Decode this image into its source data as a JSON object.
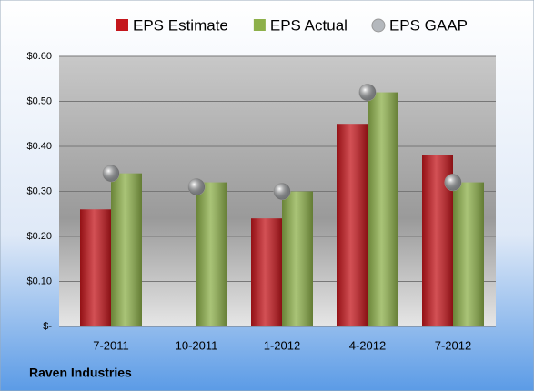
{
  "chart_data": {
    "type": "bar",
    "categories": [
      "7-2011",
      "10-2011",
      "1-2012",
      "4-2012",
      "7-2012"
    ],
    "series": [
      {
        "name": "EPS Estimate",
        "type": "bar",
        "color": "#c4161c",
        "values": [
          0.26,
          null,
          0.24,
          0.45,
          0.38
        ]
      },
      {
        "name": "EPS Actual",
        "type": "bar",
        "color": "#8db04a",
        "values": [
          0.34,
          0.32,
          0.3,
          0.52,
          0.32
        ]
      },
      {
        "name": "EPS GAAP",
        "type": "scatter",
        "color": "#b4b8bd",
        "values": [
          0.34,
          0.31,
          0.3,
          0.52,
          0.32
        ]
      }
    ],
    "ylim": [
      0,
      0.6
    ],
    "yticks": [
      {
        "value": 0,
        "label": "$-"
      },
      {
        "value": 0.1,
        "label": "$0.10"
      },
      {
        "value": 0.2,
        "label": "$0.20"
      },
      {
        "value": 0.3,
        "label": "$0.30"
      },
      {
        "value": 0.4,
        "label": "$0.40"
      },
      {
        "value": 0.5,
        "label": "$0.50"
      },
      {
        "value": 0.6,
        "label": "$0.60"
      }
    ],
    "grid": true,
    "legend": "top",
    "footer": "Raven Industries"
  }
}
